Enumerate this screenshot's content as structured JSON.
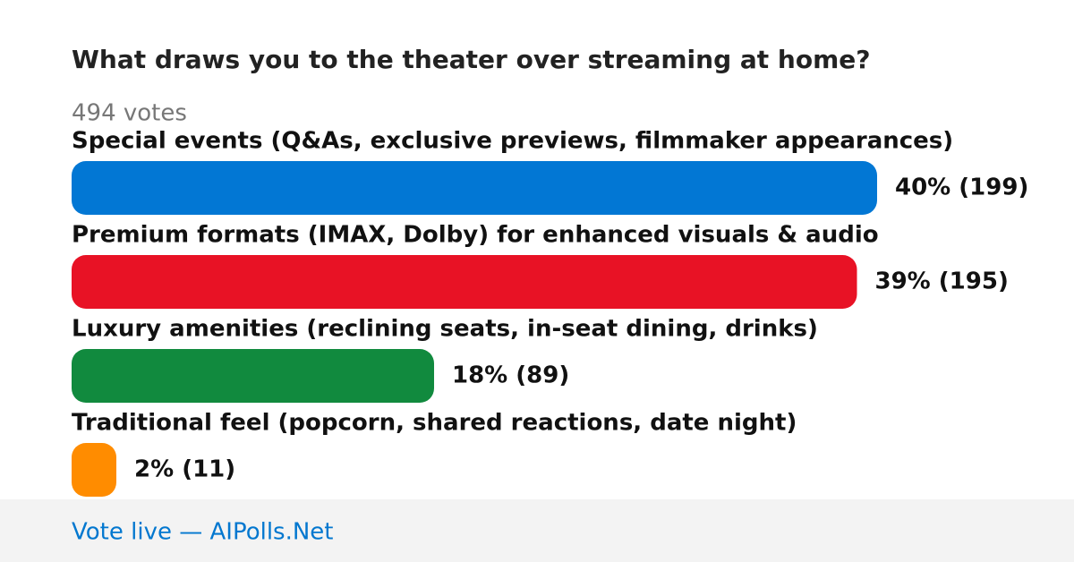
{
  "chart_data": {
    "type": "bar",
    "title": "What draws you to the theater over streaming at home?",
    "subtitle": "494 votes",
    "categories": [
      "Special events (Q&As, exclusive previews, filmmaker appearances)",
      "Premium formats (IMAX, Dolby) for enhanced visuals & audio",
      "Luxury amenities (reclining seats, in-seat dining, drinks)",
      "Traditional feel (popcorn, shared reactions, date night)"
    ],
    "values": [
      40,
      39,
      18,
      2
    ],
    "value_labels": [
      "40% (199)",
      "39% (195)",
      "18% (89)",
      "2% (11)"
    ],
    "colors": [
      "#0277d4",
      "#e81225",
      "#118a3e",
      "#ff8c00"
    ],
    "footer": "Vote live — AIPolls.Net"
  }
}
